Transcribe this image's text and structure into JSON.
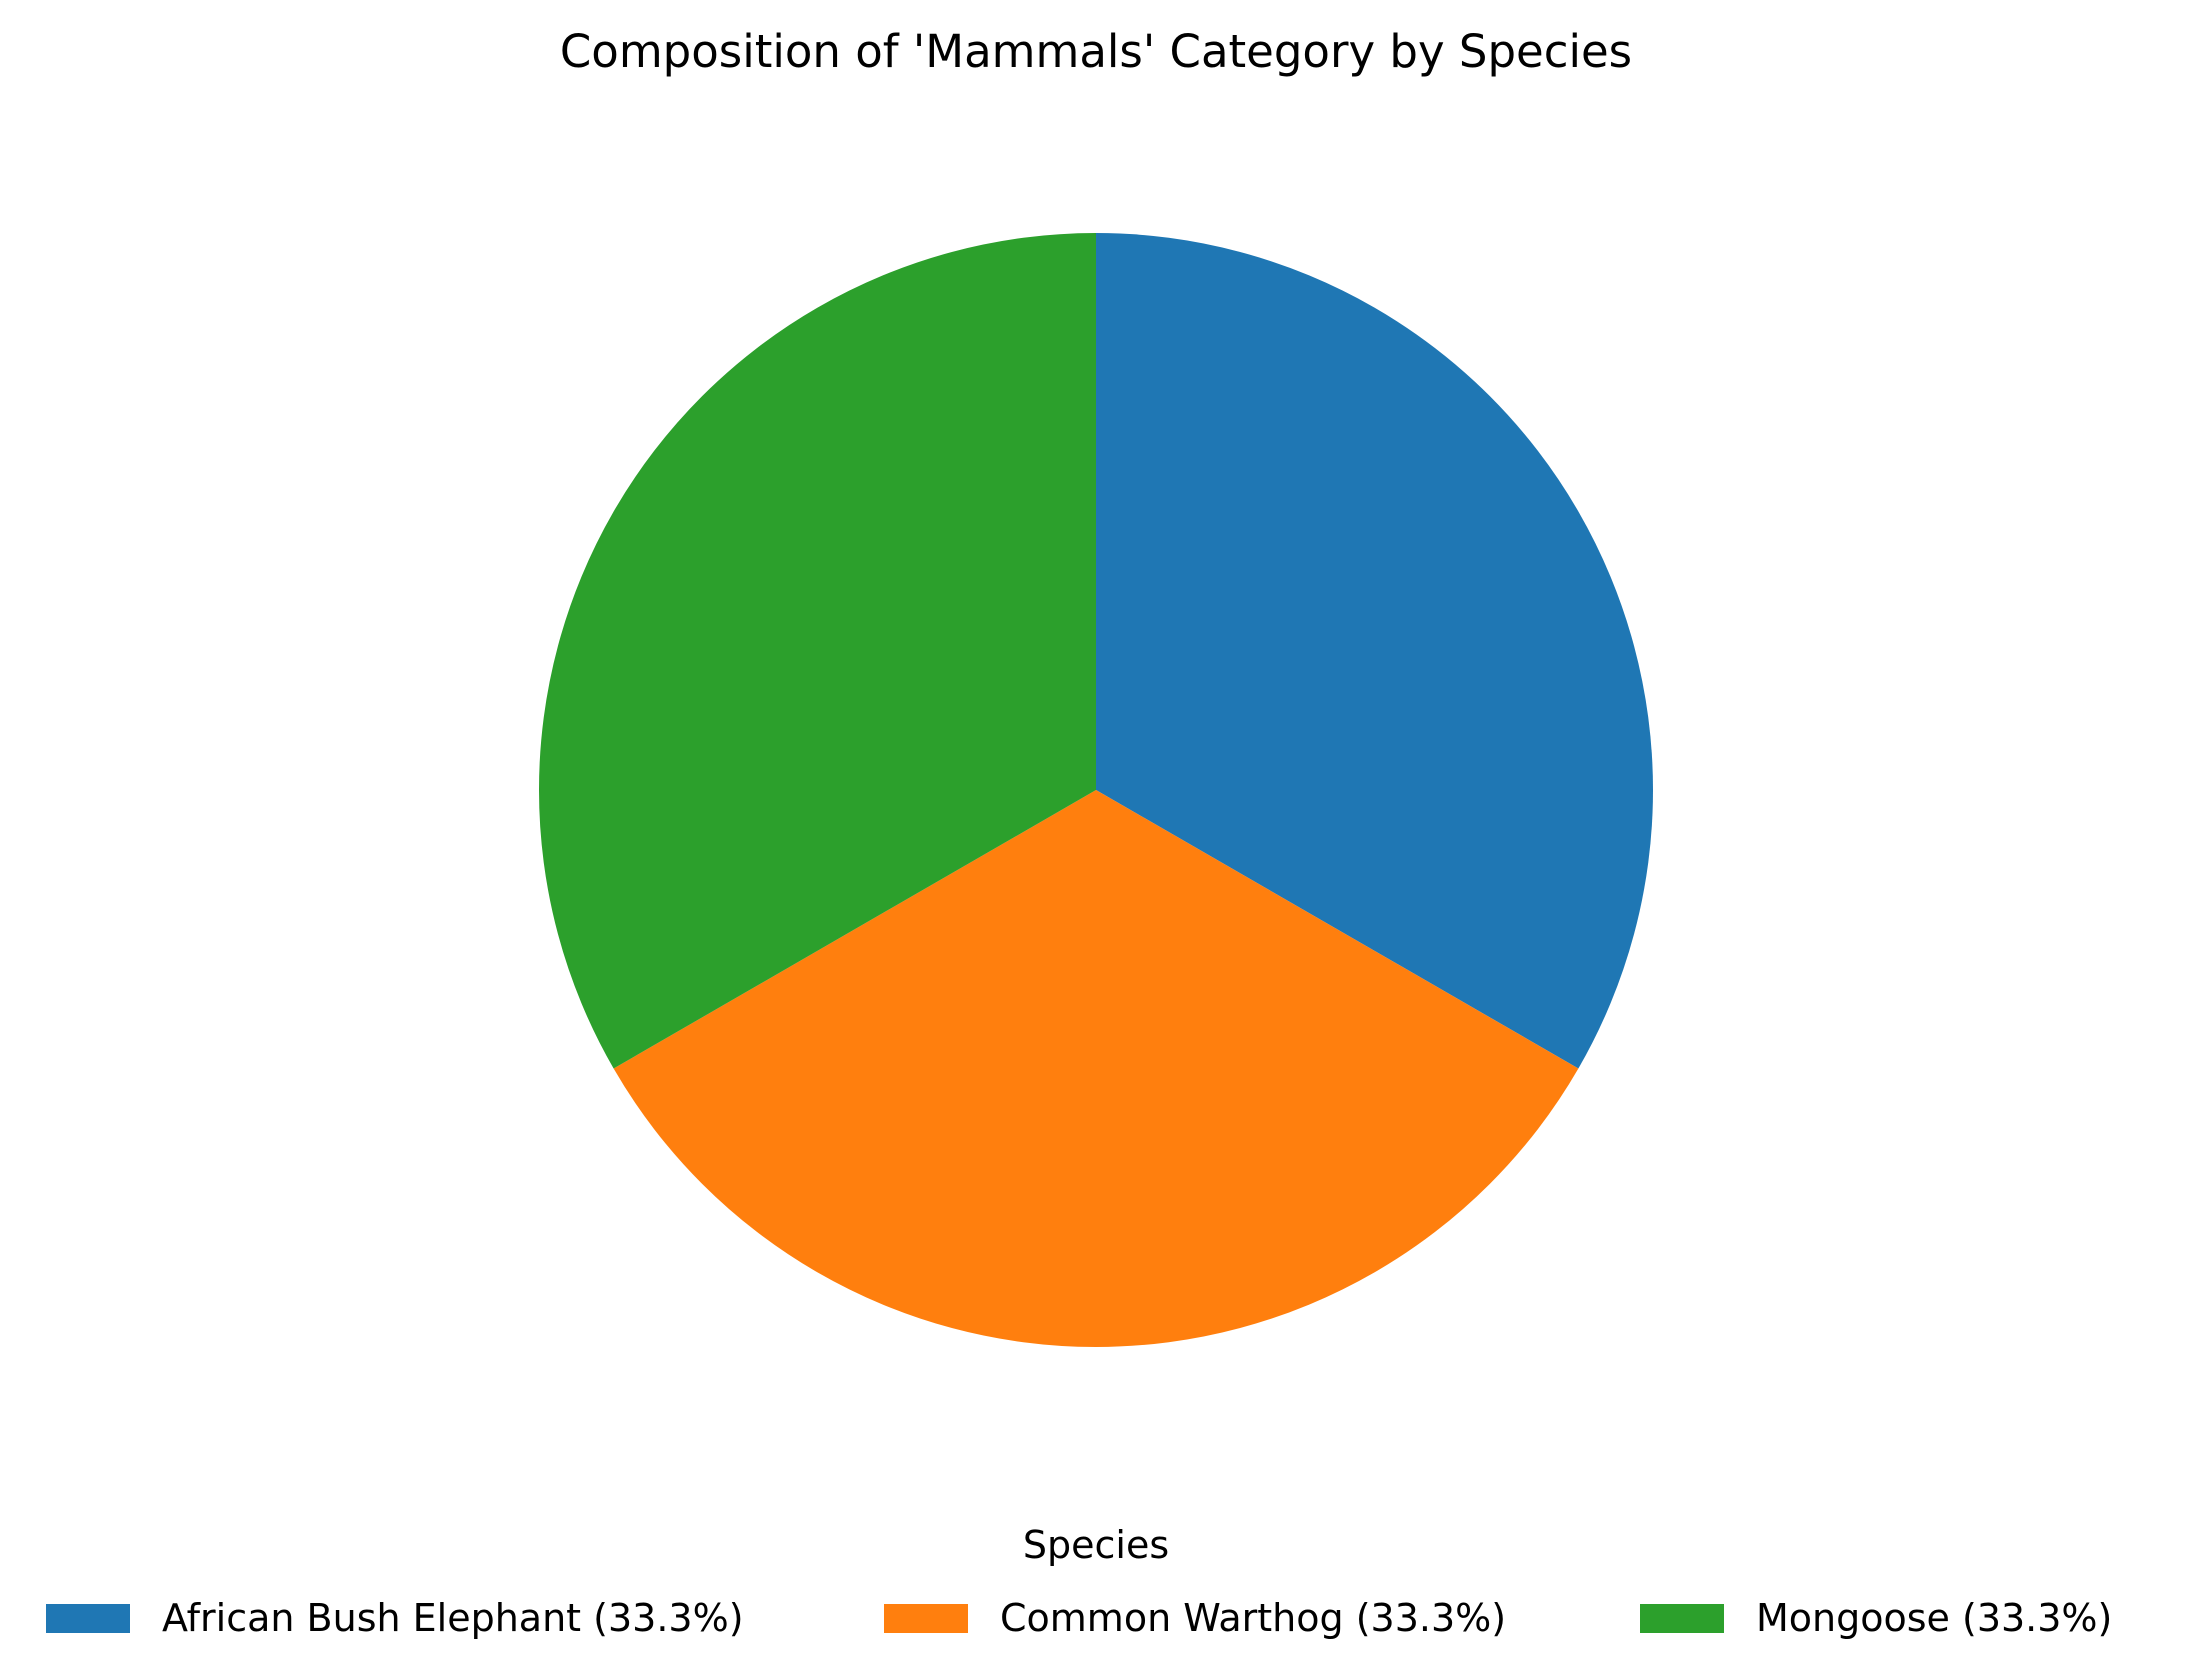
{
  "chart_data": {
    "type": "pie",
    "title": "Composition of 'Mammals' Category by Species",
    "legend_title": "Species",
    "legend_placement": "bottom",
    "start_angle": "90",
    "direction": "clockwise",
    "slices": [
      {
        "label": "African Bush Elephant",
        "value": 33.3,
        "legend_label": "African Bush Elephant (33.3%)",
        "color": "#1f77b4"
      },
      {
        "label": "Common Warthog",
        "value": 33.3,
        "legend_label": "Common Warthog (33.3%)",
        "color": "#ff7f0e"
      },
      {
        "label": "Mongoose",
        "value": 33.3,
        "legend_label": "Mongoose (33.3%)",
        "color": "#2ca02c"
      }
    ]
  }
}
